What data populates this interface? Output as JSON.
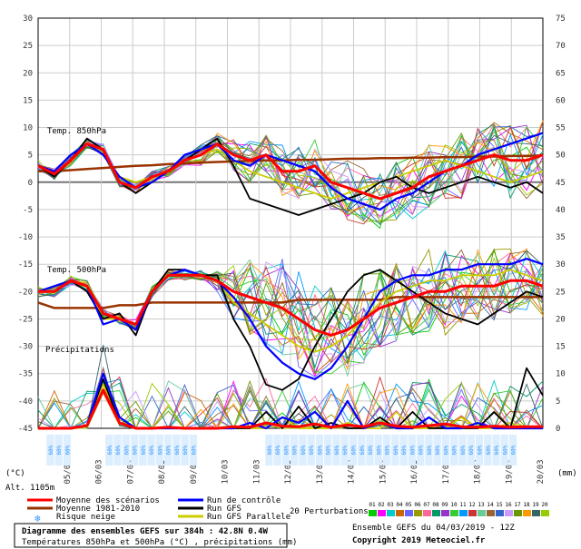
{
  "chart_data": {
    "type": "line",
    "title": "Diagramme des ensembles GEFS sur 384h : 42.8N 0.4W",
    "subtitle": "Températures 850hPa et 500hPa (°C) , précipitations (mm)",
    "run_info": "Ensemble GEFS du 04/03/2019 - 12Z",
    "copyright": "Copyright 2019 Meteociel.fr",
    "altitude": "Alt. 1105m",
    "left_unit": "(°C)",
    "right_unit": "(mm)",
    "left_axis_ticks": [
      30,
      25,
      20,
      15,
      10,
      5,
      0,
      -5,
      -10,
      -15,
      -20,
      -25,
      -30,
      -35,
      -40,
      -45
    ],
    "right_axis_ticks": [
      75,
      70,
      65,
      60,
      55,
      50,
      45,
      40,
      35,
      30,
      25,
      20,
      15,
      10,
      5,
      0
    ],
    "date_labels": [
      "05/03",
      "06/03",
      "07/03",
      "08/03",
      "09/03",
      "10/03",
      "11/03",
      "12/03",
      "13/03",
      "14/03",
      "15/03",
      "16/03",
      "17/03",
      "18/03",
      "19/03",
      "20/03"
    ],
    "panel_labels": {
      "t850": "Temp. 850hPa",
      "t500": "Temp. 500hPa",
      "precip": "Précipitations"
    },
    "snow_label": "Risque neige",
    "snow_cell_text": "60%",
    "legend": {
      "mean": "Moyenne des scénarios",
      "climo": "Moyenne 1981-2010",
      "control": "Run de contrôle",
      "gfs": "Run GFS",
      "gfs_par": "Run GFS Parallele",
      "perturb": "20 Perturbations",
      "perturb_numbers": [
        "01",
        "02",
        "03",
        "04",
        "05",
        "06",
        "07",
        "08",
        "09",
        "10",
        "11",
        "12",
        "13",
        "14",
        "15",
        "16",
        "17",
        "18",
        "19",
        "20"
      ]
    },
    "colors": {
      "mean": "#ff0000",
      "climo": "#993300",
      "control": "#0000ff",
      "gfs": "#000000",
      "gfs_par": "#cccc00",
      "perturb": [
        "#00cc00",
        "#ff00ff",
        "#00cccc",
        "#cc6600",
        "#6666ff",
        "#999900",
        "#ff6699",
        "#009966",
        "#9933cc",
        "#33cc33",
        "#0099ff",
        "#cc3333",
        "#66cc99",
        "#996633",
        "#3366cc",
        "#cc99ff",
        "#669900",
        "#ff9900",
        "#336666",
        "#99cc00"
      ]
    },
    "x_step_days": 0.5,
    "series_t850": {
      "mean": [
        3,
        1.5,
        4,
        7,
        6,
        0,
        -1,
        1,
        2,
        4,
        5,
        7,
        5,
        4,
        5,
        2,
        2,
        3,
        0,
        -1,
        -2,
        -3,
        -2,
        -1,
        1,
        2,
        3,
        4,
        5,
        4,
        4,
        5
      ],
      "climo": [
        2,
        2,
        2.2,
        2.4,
        2.6,
        2.8,
        3,
        3.1,
        3.3,
        3.4,
        3.6,
        3.7,
        3.8,
        3.9,
        4,
        4,
        4.1,
        4.1,
        4.2,
        4.3,
        4.3,
        4.4,
        4.4,
        4.5,
        4.5,
        4.6,
        4.6,
        4.7,
        4.7,
        4.8,
        4.8,
        4.9
      ],
      "control": [
        3,
        2,
        5,
        7,
        5,
        1,
        -1,
        0,
        2,
        5,
        6,
        7,
        4,
        3,
        5,
        4,
        3,
        2,
        -1,
        -3,
        -4,
        -5,
        -3,
        -2,
        0,
        2,
        3,
        5,
        6,
        7,
        8,
        9
      ],
      "gfs": [
        3,
        1,
        4,
        8,
        6,
        0,
        -2,
        0,
        2,
        4,
        6,
        8,
        3,
        -3,
        -4,
        -5,
        -6,
        -5,
        -4,
        -3,
        -2,
        0,
        1,
        -1,
        -2,
        -1,
        0,
        1,
        0,
        -1,
        0,
        -2
      ],
      "gfs_par": [
        3,
        2,
        5,
        7,
        5,
        1,
        0,
        1,
        2,
        4,
        5,
        6,
        4,
        2,
        1,
        0,
        -1,
        -2,
        -3,
        -2,
        -1,
        0,
        1,
        2,
        3,
        4,
        3,
        2,
        1,
        0,
        1,
        2
      ],
      "spread": [
        1,
        1,
        1,
        1,
        1,
        1,
        1,
        1,
        1,
        1,
        2,
        2,
        3,
        4,
        4,
        5,
        5,
        5,
        5,
        6,
        6,
        6,
        6,
        6,
        6,
        6,
        6,
        6,
        6,
        7,
        7,
        7
      ]
    },
    "series_t500": {
      "mean": [
        -20,
        -20,
        -18,
        -19,
        -24,
        -25,
        -26,
        -20,
        -17,
        -17,
        -17,
        -18,
        -20,
        -21,
        -22,
        -23,
        -25,
        -27,
        -28,
        -27,
        -25,
        -23,
        -22,
        -21,
        -20,
        -20,
        -19,
        -19,
        -19,
        -18,
        -18,
        -19
      ],
      "climo": [
        -22,
        -23,
        -23,
        -23,
        -23,
        -22.5,
        -22.5,
        -22,
        -22,
        -22,
        -22,
        -22,
        -22,
        -22,
        -22,
        -22,
        -21.5,
        -21.5,
        -21.5,
        -21.5,
        -21.5,
        -21.5,
        -21,
        -21,
        -21,
        -21,
        -21,
        -21,
        -21,
        -21,
        -21,
        -21
      ],
      "control": [
        -20,
        -19,
        -18,
        -19,
        -26,
        -25,
        -27,
        -20,
        -17,
        -16,
        -17,
        -18,
        -21,
        -25,
        -30,
        -33,
        -35,
        -36,
        -34,
        -30,
        -25,
        -20,
        -18,
        -17,
        -17,
        -16,
        -16,
        -15,
        -15,
        -15,
        -14,
        -15
      ],
      "gfs": [
        -20,
        -19,
        -18,
        -20,
        -25,
        -24,
        -28,
        -20,
        -16,
        -16,
        -17,
        -17,
        -25,
        -30,
        -37,
        -38,
        -36,
        -30,
        -25,
        -20,
        -17,
        -16,
        -18,
        -20,
        -22,
        -24,
        -25,
        -26,
        -24,
        -22,
        -20,
        -21
      ],
      "gfs_par": [
        -20,
        -20,
        -18,
        -19,
        -25,
        -25,
        -27,
        -20,
        -17,
        -17,
        -17,
        -18,
        -22,
        -24,
        -26,
        -28,
        -30,
        -31,
        -30,
        -28,
        -25,
        -22,
        -20,
        -19,
        -18,
        -18,
        -17,
        -17,
        -17,
        -16,
        -17,
        -18
      ],
      "spread": [
        1,
        1,
        1,
        1,
        1,
        1,
        1,
        1,
        1,
        1,
        1,
        2,
        5,
        7,
        8,
        9,
        9,
        9,
        9,
        9,
        9,
        9,
        8,
        8,
        8,
        8,
        7,
        7,
        7,
        6,
        6,
        6
      ]
    },
    "series_precip_mm": {
      "mean": [
        0,
        0,
        0,
        0.5,
        7,
        1,
        0,
        0,
        0.2,
        0,
        0,
        0,
        0.3,
        0.2,
        1,
        0.4,
        0.3,
        0.8,
        0.2,
        0.6,
        0.3,
        1,
        0.4,
        0.2,
        0.5,
        0.8,
        0.3,
        0.2,
        0.4,
        0.2,
        0.3,
        0.3
      ],
      "control": [
        0,
        0,
        0,
        0.5,
        10,
        2,
        0,
        0,
        0,
        0,
        0,
        0,
        0,
        1,
        0,
        2,
        1,
        3,
        0,
        5,
        0,
        1,
        0,
        0,
        2,
        0,
        0,
        1,
        0,
        0,
        0,
        0
      ],
      "gfs": [
        0,
        0,
        0,
        0.5,
        9,
        1,
        0,
        0,
        0,
        0,
        0,
        0,
        0,
        0,
        3,
        0,
        4,
        0,
        1,
        0,
        0,
        2,
        0,
        3,
        0,
        0,
        0,
        0,
        3,
        0,
        11,
        6
      ],
      "gfs_par": [
        0,
        0,
        0,
        0.5,
        8,
        1,
        0,
        0,
        0,
        0,
        0,
        0,
        0,
        0,
        0,
        2,
        0,
        0,
        0,
        1,
        0,
        0,
        3,
        0,
        0,
        0,
        2,
        0,
        0,
        1,
        0,
        0
      ]
    }
  }
}
